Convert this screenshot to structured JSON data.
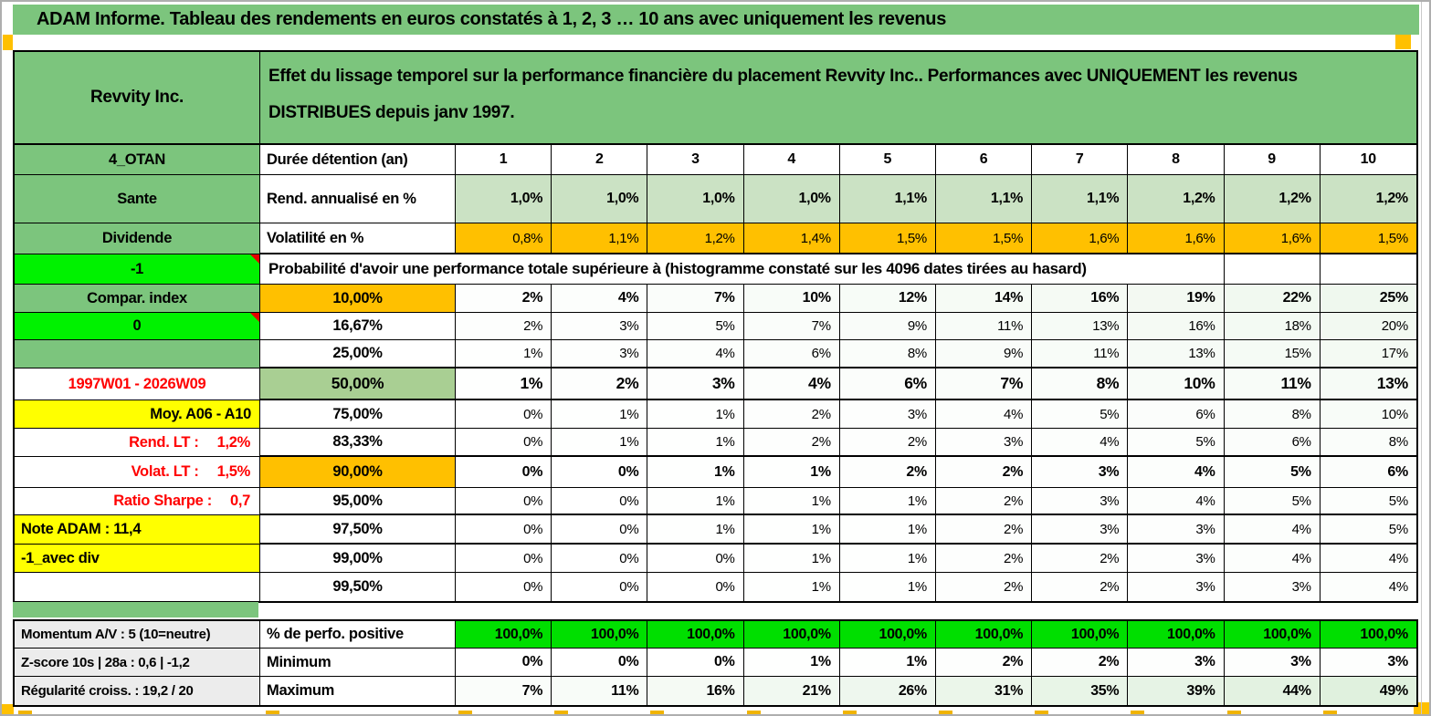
{
  "title": "ADAM Informe. Tableau des rendements en euros constatés à 1, 2, 3 … 10 ans avec uniquement les revenus",
  "header": {
    "company": "Revvity Inc.",
    "description_line1": "Effet du lissage temporel sur la performance financière du placement Revvity Inc.. Performances avec UNIQUEMENT les revenus",
    "description_line2": "DISTRIBUES depuis janv 1997."
  },
  "left_panel": {
    "rows": [
      {
        "text": "4_OTAN",
        "style": "green"
      },
      {
        "text": "Sante",
        "style": "green"
      },
      {
        "text": "Dividende",
        "style": "green"
      },
      {
        "text": "-1",
        "style": "bright",
        "comment": true
      },
      {
        "text": "Compar. index",
        "style": "green"
      },
      {
        "text": "0",
        "style": "bright",
        "comment": true
      },
      {
        "text": "",
        "style": "green"
      },
      {
        "text": "1997W01 - 2026W09",
        "style": "red-center"
      },
      {
        "text": "Moy. A06 - A10",
        "style": "yellow-right"
      },
      {
        "text": "Rend. LT :",
        "value": "1,2%",
        "style": "red-right"
      },
      {
        "text": "Volat. LT :",
        "value": "1,5%",
        "style": "red-right"
      },
      {
        "text": "Ratio Sharpe :",
        "value": "0,7",
        "style": "red-right"
      },
      {
        "text": "Note ADAM : 11,4",
        "style": "yellow-left"
      },
      {
        "text": "-1_avec div",
        "style": "yellow-left"
      },
      {
        "text": "",
        "style": "white"
      }
    ]
  },
  "table": {
    "duration_label": "Durée détention (an)",
    "durations": [
      "1",
      "2",
      "3",
      "4",
      "5",
      "6",
      "7",
      "8",
      "9",
      "10"
    ],
    "metric_rows": [
      {
        "label": "Rend. annualisé en %",
        "type": "rend",
        "values": [
          "1,0%",
          "1,0%",
          "1,0%",
          "1,0%",
          "1,1%",
          "1,1%",
          "1,1%",
          "1,2%",
          "1,2%",
          "1,2%"
        ]
      },
      {
        "label": "Volatilité en %",
        "type": "volat",
        "values": [
          "0,8%",
          "1,1%",
          "1,2%",
          "1,4%",
          "1,5%",
          "1,5%",
          "1,6%",
          "1,6%",
          "1,6%",
          "1,5%"
        ]
      }
    ],
    "probability_header": "Probabilité d'avoir une performance totale supérieure à (histogramme constaté sur les 4096 dates tirées au hasard)",
    "probability_rows": [
      {
        "label": "10,00%",
        "label_style": "orange",
        "bold": true,
        "values": [
          2,
          4,
          7,
          10,
          12,
          14,
          16,
          19,
          22,
          25
        ]
      },
      {
        "label": "16,67%",
        "label_style": "white",
        "values": [
          2,
          3,
          5,
          7,
          9,
          11,
          13,
          16,
          18,
          20
        ]
      },
      {
        "label": "25,00%",
        "label_style": "white",
        "thick": true,
        "values": [
          1,
          3,
          4,
          6,
          8,
          9,
          11,
          13,
          15,
          17
        ]
      },
      {
        "label": "50,00%",
        "label_style": "green",
        "big": true,
        "bold": true,
        "thick": true,
        "values": [
          1,
          2,
          3,
          4,
          6,
          7,
          8,
          10,
          11,
          13
        ]
      },
      {
        "label": "75,00%",
        "label_style": "white",
        "values": [
          0,
          1,
          1,
          2,
          3,
          4,
          5,
          6,
          8,
          10
        ]
      },
      {
        "label": "83,33%",
        "label_style": "white",
        "thick": true,
        "values": [
          0,
          1,
          1,
          2,
          2,
          3,
          4,
          5,
          6,
          8
        ]
      },
      {
        "label": "90,00%",
        "label_style": "orange",
        "bold": true,
        "values": [
          0,
          0,
          1,
          1,
          2,
          2,
          3,
          4,
          5,
          6
        ]
      },
      {
        "label": "95,00%",
        "label_style": "white",
        "thick": true,
        "values": [
          0,
          0,
          1,
          1,
          1,
          2,
          3,
          4,
          5,
          5
        ]
      },
      {
        "label": "97,50%",
        "label_style": "white",
        "thick": true,
        "values": [
          0,
          0,
          1,
          1,
          1,
          2,
          3,
          3,
          4,
          5
        ]
      },
      {
        "label": "99,00%",
        "label_style": "white",
        "values": [
          0,
          0,
          0,
          1,
          1,
          2,
          2,
          3,
          4,
          4
        ]
      },
      {
        "label": "99,50%",
        "label_style": "white",
        "values": [
          0,
          0,
          0,
          1,
          1,
          2,
          2,
          3,
          3,
          4
        ]
      }
    ],
    "summary_rows": [
      {
        "left": "Momentum A/V : 5 (10=neutre)",
        "label": "% de perfo. positive",
        "type": "positive",
        "values": [
          "100,0%",
          "100,0%",
          "100,0%",
          "100,0%",
          "100,0%",
          "100,0%",
          "100,0%",
          "100,0%",
          "100,0%",
          "100,0%"
        ]
      },
      {
        "left": "Z-score 10s | 28a : 0,6 | -1,2",
        "label": "Minimum",
        "type": "minimum",
        "values": [
          0,
          0,
          0,
          1,
          1,
          2,
          2,
          3,
          3,
          3
        ]
      },
      {
        "left": "Régularité croiss. : 19,2 / 20",
        "label": "Maximum",
        "type": "maximum",
        "values": [
          7,
          11,
          16,
          21,
          26,
          31,
          35,
          39,
          44,
          49
        ]
      }
    ]
  },
  "colors": {
    "green": "#7cc57d",
    "lightgreen": "#cbe2c4",
    "midgreen": "#a9cf93",
    "bright": "#00f200",
    "positive": "#00df00",
    "orange": "#ffc000",
    "yellow": "#ffff00",
    "red": "#ff0000",
    "graylabel": "#ececec",
    "tint_rgb": "126,196,120"
  }
}
